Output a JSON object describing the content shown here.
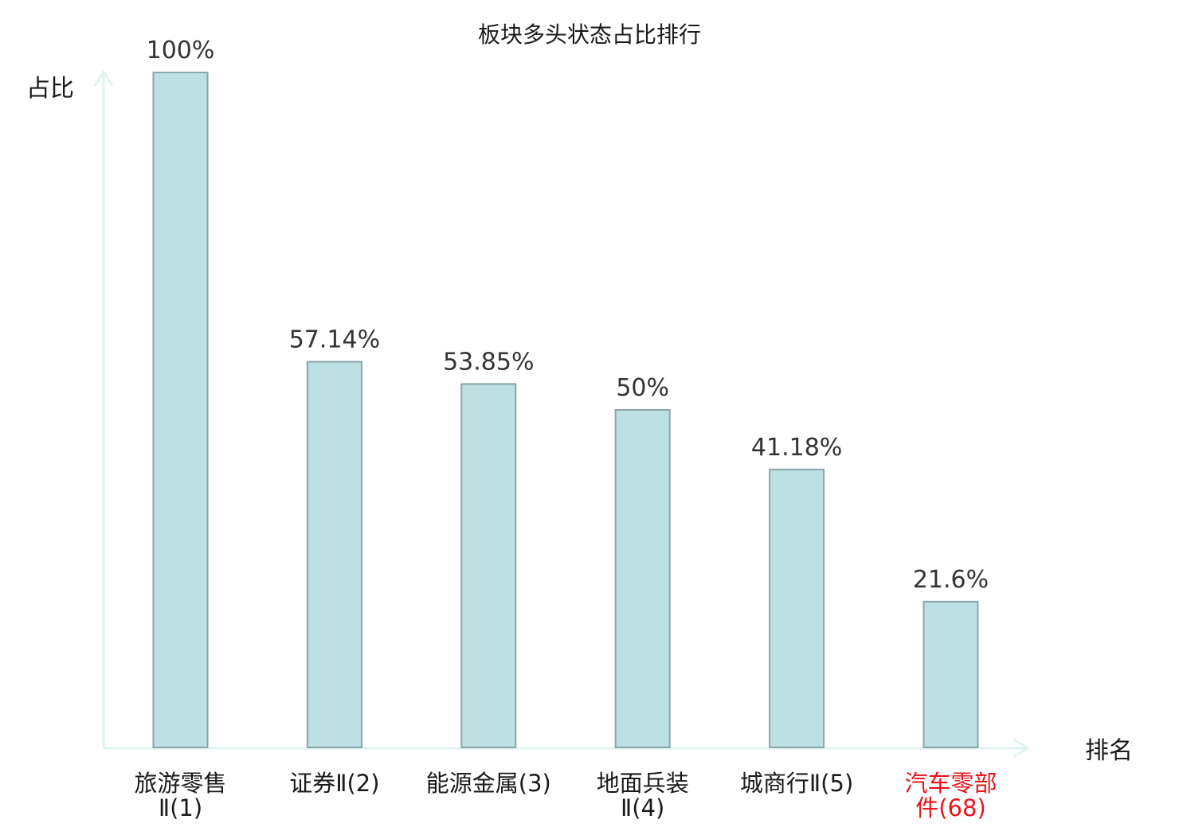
{
  "chart_data": {
    "type": "bar",
    "title": "板块多头状态占比排行",
    "ylabel": "占比",
    "xlabel": "排名",
    "ylim": [
      0,
      100
    ],
    "grid": false,
    "categories": [
      [
        "旅游零售",
        "Ⅱ(1)"
      ],
      [
        "证券Ⅱ(2)"
      ],
      [
        "能源金属(3)"
      ],
      [
        "地面兵装",
        "Ⅱ(4)"
      ],
      [
        "城商行Ⅱ(5)"
      ],
      [
        "汽车零部",
        "件(68)"
      ]
    ],
    "values": [
      100,
      57.14,
      53.85,
      50,
      41.18,
      21.6
    ],
    "value_labels": [
      "100%",
      "57.14%",
      "53.85%",
      "50%",
      "41.18%",
      "21.6%"
    ],
    "highlight_index": 5,
    "colors": {
      "bar_fill": "#bde0e2",
      "bar_stroke": "#8aa5a8",
      "axis": "#e0f3f0",
      "text": "#1a1a1a",
      "value_text": "#333333",
      "highlight_text": "#e8141a"
    }
  }
}
